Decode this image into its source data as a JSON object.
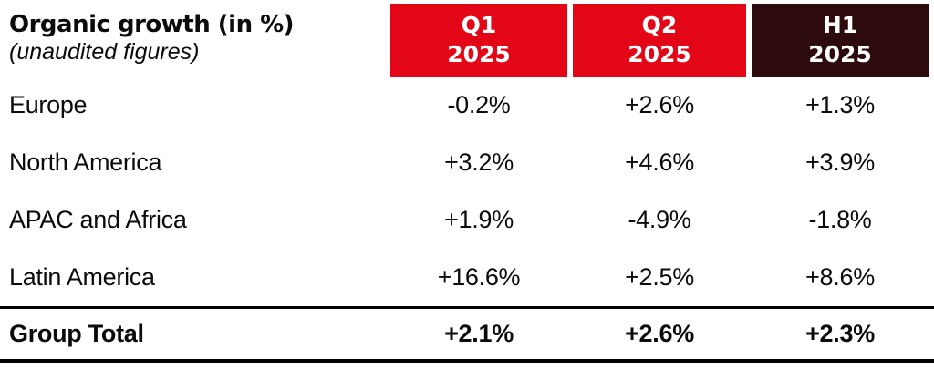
{
  "table": {
    "title": "Organic growth (in %)",
    "subtitle": "(unaudited figures)",
    "colors": {
      "header_red": "#e30617",
      "header_dark": "#2d0a0b",
      "text": "#0b0b0b",
      "rule": "#000000"
    },
    "columns": [
      {
        "period": "Q1",
        "year": "2025"
      },
      {
        "period": "Q2",
        "year": "2025"
      },
      {
        "period": "H1",
        "year": "2025"
      }
    ],
    "rows": [
      {
        "label": "Europe",
        "values": [
          "-0.2%",
          "+2.6%",
          "+1.3%"
        ]
      },
      {
        "label": "North America",
        "values": [
          "+3.2%",
          "+4.6%",
          "+3.9%"
        ]
      },
      {
        "label": "APAC and Africa",
        "values": [
          "+1.9%",
          "-4.9%",
          "-1.8%"
        ]
      },
      {
        "label": "Latin America",
        "values": [
          "+16.6%",
          "+2.5%",
          "+8.6%"
        ]
      }
    ],
    "total_row": {
      "label": "Group Total",
      "values": [
        "+2.1%",
        "+2.6%",
        "+2.3%"
      ]
    }
  },
  "chart_data": {
    "type": "table",
    "title": "Organic growth (in %)",
    "subtitle": "(unaudited figures)",
    "columns": [
      "Q1 2025",
      "Q2 2025",
      "H1 2025"
    ],
    "units": "%",
    "rows": [
      {
        "label": "Europe",
        "values": [
          -0.2,
          2.6,
          1.3
        ]
      },
      {
        "label": "North America",
        "values": [
          3.2,
          4.6,
          3.9
        ]
      },
      {
        "label": "APAC and Africa",
        "values": [
          1.9,
          -4.9,
          -1.8
        ]
      },
      {
        "label": "Latin America",
        "values": [
          16.6,
          2.5,
          8.6
        ]
      },
      {
        "label": "Group Total",
        "values": [
          2.1,
          2.6,
          2.3
        ]
      }
    ]
  }
}
